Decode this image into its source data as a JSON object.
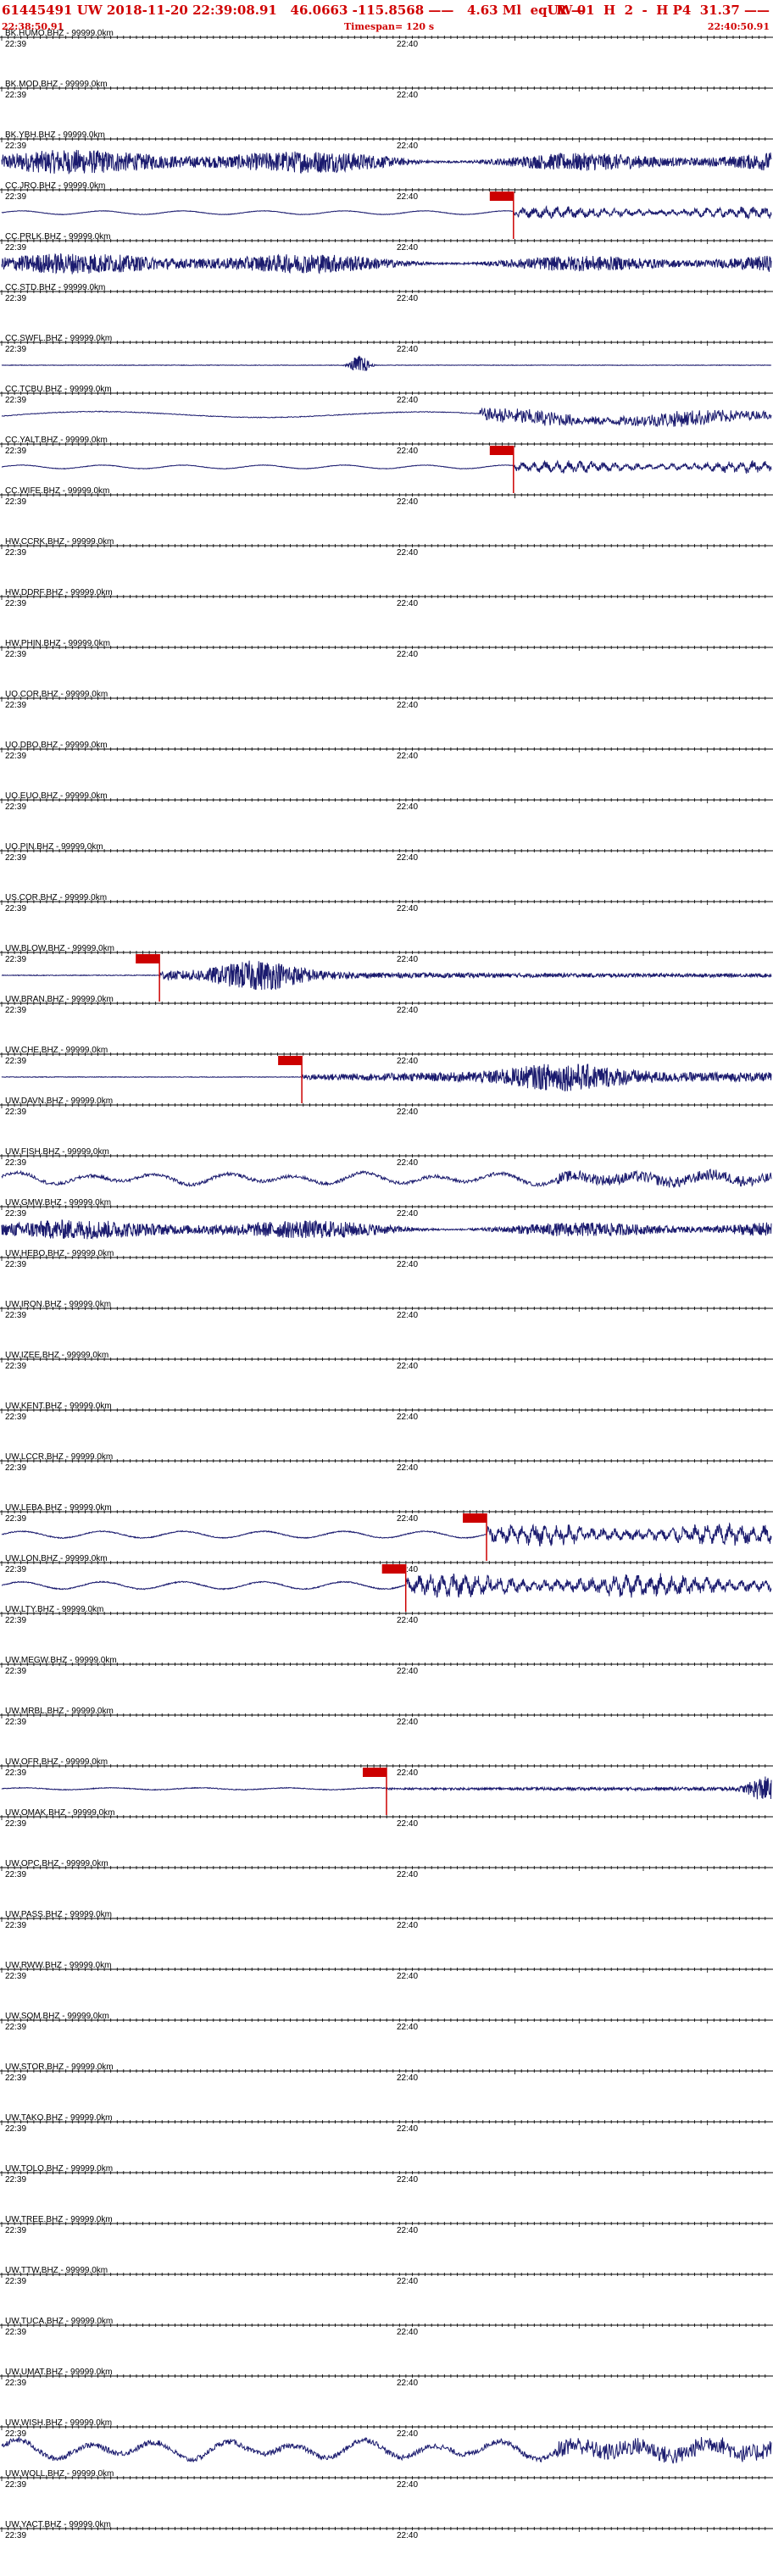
{
  "header": {
    "event_id": "61445491",
    "network": "UW",
    "origin_time": "2018-11-20 22:39:08.91",
    "lat": "46.0663",
    "lon": "-115.8568",
    "magnitude": "4.63 Ml",
    "event_type": "eq",
    "review": "R",
    "meta_right": "UW 01  H  2  -  H P4  31.37",
    "start_time": "22:38:50.91",
    "timespan": "Timespan= 120 s",
    "end_time": "22:40:50.91"
  },
  "chart_data": {
    "type": "line",
    "title": "",
    "x_unit": "time",
    "x_start": "22:38:50.91",
    "x_end": "22:40:50.91",
    "time_labels": [
      "22:39",
      "22:40"
    ],
    "trace_color": "#1a1a6e",
    "pick_color": "#cc0000",
    "traces": [
      {
        "label": "BK.HUMO.BHZ - 99999.0km",
        "amp": 0,
        "pick": null
      },
      {
        "label": "BK.MOD.BHZ - 99999.0km",
        "amp": 0,
        "pick": null
      },
      {
        "label": "BK.YBH.BHZ - 99999.0km",
        "amp": 15,
        "style": "broadband",
        "pick": null
      },
      {
        "label": "CC.JRO.BHZ - 99999.0km",
        "amp": 6,
        "style": "swell-event",
        "pick": 0.665
      },
      {
        "label": "CC.PRLK.BHZ - 99999.0km",
        "amp": 13,
        "style": "broadband",
        "pick": null
      },
      {
        "label": "CC.STD.BHZ - 99999.0km",
        "amp": 0,
        "pick": null
      },
      {
        "label": "CC.SWFL.BHZ - 99999.0km",
        "amp": 3,
        "style": "burst",
        "burst_at": 0.465,
        "pick": null
      },
      {
        "label": "CC.TCBU.BHZ - 99999.0km",
        "amp": 8,
        "style": "drift-event",
        "event_at": 0.62,
        "pick": null
      },
      {
        "label": "CC.YALT.BHZ - 99999.0km",
        "amp": 6,
        "style": "swell-event",
        "pick": 0.665
      },
      {
        "label": "CC.WIFE.BHZ - 99999.0km",
        "amp": 0,
        "pick": null
      },
      {
        "label": "HW.CCRK.BHZ - 99999.0km",
        "amp": 0,
        "pick": null
      },
      {
        "label": "HW.DDRF.BHZ - 99999.0km",
        "amp": 0,
        "pick": null
      },
      {
        "label": "HW.PHIN.BHZ - 99999.0km",
        "amp": 0,
        "pick": null
      },
      {
        "label": "UO.COR.BHZ - 99999.0km",
        "amp": 0,
        "pick": null
      },
      {
        "label": "UO.DBO.BHZ - 99999.0km",
        "amp": 0,
        "pick": null
      },
      {
        "label": "UO.EUO.BHZ - 99999.0km",
        "amp": 0,
        "pick": null
      },
      {
        "label": "UO.PIN.BHZ - 99999.0km",
        "amp": 0,
        "pick": null
      },
      {
        "label": "US.COR.BHZ - 99999.0km",
        "amp": 0,
        "pick": null
      },
      {
        "label": "UW.BLOW.BHZ - 99999.0km",
        "amp": 14,
        "style": "early-event",
        "pick": 0.205
      },
      {
        "label": "UW.BRAN.BHZ - 99999.0km",
        "amp": 0,
        "pick": null
      },
      {
        "label": "UW.CHE.BHZ - 99999.0km",
        "amp": 12,
        "style": "mid-event",
        "pick": 0.39
      },
      {
        "label": "UW.DAVN.BHZ - 99999.0km",
        "amp": 0,
        "pick": null
      },
      {
        "label": "UW.FISH.BHZ - 99999.0km",
        "amp": 8,
        "style": "swell",
        "pick": null
      },
      {
        "label": "UW.GMW.BHZ - 99999.0km",
        "amp": 12,
        "style": "broadband",
        "pick": null
      },
      {
        "label": "UW.HEBO.BHZ - 99999.0km",
        "amp": 0,
        "pick": null
      },
      {
        "label": "UW.IRON.BHZ - 99999.0km",
        "amp": 0,
        "pick": null
      },
      {
        "label": "UW.IZEE.BHZ - 99999.0km",
        "amp": 0,
        "pick": null
      },
      {
        "label": "UW.KENT.BHZ - 99999.0km",
        "amp": 0,
        "pick": null
      },
      {
        "label": "UW.LCCR.BHZ - 99999.0km",
        "amp": 0,
        "pick": null
      },
      {
        "label": "UW.LEBA.BHZ - 99999.0km",
        "amp": 11,
        "style": "swell-event",
        "pick": 0.63
      },
      {
        "label": "UW.LON.BHZ - 99999.0km",
        "amp": 12,
        "style": "swell-event",
        "pick": 0.525
      },
      {
        "label": "UW.LTY.BHZ - 99999.0km",
        "amp": 0,
        "pick": null
      },
      {
        "label": "UW.MEGW.BHZ - 99999.0km",
        "amp": 0,
        "pick": null
      },
      {
        "label": "UW.MRBL.BHZ - 99999.0km",
        "amp": 0,
        "pick": null
      },
      {
        "label": "UW.OFR.BHZ - 99999.0km",
        "amp": 9,
        "style": "late-event",
        "pick": 0.5
      },
      {
        "label": "UW.OMAK.BHZ - 99999.0km",
        "amp": 0,
        "pick": null
      },
      {
        "label": "UW.OPC.BHZ - 99999.0km",
        "amp": 0,
        "pick": null
      },
      {
        "label": "UW.PASS.BHZ - 99999.0km",
        "amp": 0,
        "pick": null
      },
      {
        "label": "UW.RWW.BHZ - 99999.0km",
        "amp": 0,
        "pick": null
      },
      {
        "label": "UW.SQM.BHZ - 99999.0km",
        "amp": 0,
        "pick": null
      },
      {
        "label": "UW.STOR.BHZ - 99999.0km",
        "amp": 0,
        "pick": null
      },
      {
        "label": "UW.TAKO.BHZ - 99999.0km",
        "amp": 0,
        "pick": null
      },
      {
        "label": "UW.TOLO.BHZ - 99999.0km",
        "amp": 0,
        "pick": null
      },
      {
        "label": "UW.TREE.BHZ - 99999.0km",
        "amp": 0,
        "pick": null
      },
      {
        "label": "UW.TTW.BHZ - 99999.0km",
        "amp": 0,
        "pick": null
      },
      {
        "label": "UW.TUCA.BHZ - 99999.0km",
        "amp": 0,
        "pick": null
      },
      {
        "label": "UW.UMAT.BHZ - 99999.0km",
        "amp": 0,
        "pick": null
      },
      {
        "label": "UW.WISH.BHZ - 99999.0km",
        "amp": 13,
        "style": "swell",
        "pick": null
      },
      {
        "label": "UW.WOLL.BHZ - 99999.0km",
        "amp": 0,
        "pick": null
      },
      {
        "label": "UW.YACT.BHZ - 99999.0km",
        "amp": 0,
        "pick": null
      }
    ]
  }
}
